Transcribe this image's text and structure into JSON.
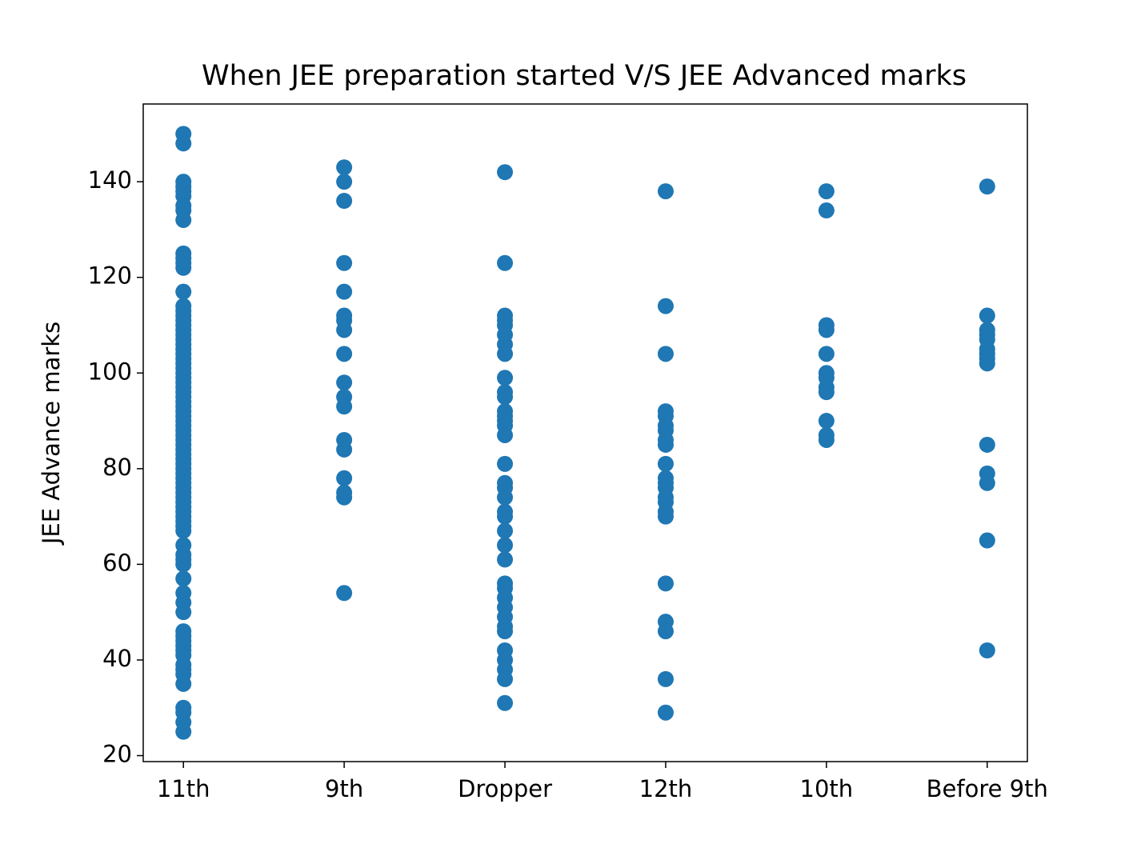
{
  "chart_data": {
    "type": "scatter",
    "title": "When JEE preparation started V/S JEE Advanced marks",
    "y_label": "JEE Advance marks",
    "categories": [
      "11th",
      "9th",
      "Dropper",
      "12th",
      "10th",
      "Before 9th"
    ],
    "values": [
      [
        150,
        148,
        140,
        139,
        138,
        137,
        135,
        134,
        132,
        125,
        124,
        123,
        122,
        117,
        114,
        113,
        112,
        111,
        110,
        109,
        108,
        107,
        106,
        105,
        104,
        103,
        102,
        101,
        100,
        99,
        98,
        97,
        96,
        95,
        94,
        93,
        92,
        91,
        90,
        89,
        88,
        87,
        86,
        85,
        84,
        83,
        82,
        81,
        80,
        79,
        78,
        77,
        76,
        75,
        74,
        73,
        72,
        71,
        70,
        69,
        68,
        67,
        64,
        62,
        61,
        60,
        57,
        54,
        52,
        50,
        46,
        45,
        44,
        43,
        42,
        41,
        39,
        38,
        37,
        35,
        30,
        29,
        27,
        25
      ],
      [
        143,
        140,
        136,
        123,
        117,
        112,
        111,
        109,
        104,
        98,
        95,
        93,
        86,
        84,
        78,
        75,
        74,
        54
      ],
      [
        142,
        123,
        112,
        111,
        110,
        108,
        106,
        104,
        99,
        96,
        95,
        92,
        91,
        90,
        89,
        87,
        81,
        77,
        76,
        74,
        71,
        70,
        67,
        64,
        61,
        56,
        55,
        53,
        51,
        49,
        47,
        46,
        42,
        40,
        38,
        36,
        31
      ],
      [
        138,
        114,
        104,
        92,
        91,
        89,
        88,
        86,
        85,
        81,
        78,
        77,
        76,
        74,
        73,
        71,
        70,
        56,
        48,
        46,
        36,
        29
      ],
      [
        138,
        134,
        110,
        109,
        104,
        100,
        99,
        97,
        96,
        90,
        87,
        86
      ],
      [
        139,
        112,
        109,
        108,
        107,
        105,
        104,
        103,
        102,
        85,
        79,
        77,
        65,
        42
      ]
    ],
    "color": "#1f77b4",
    "ylim": [
      18.75,
      156.25
    ],
    "yticks": [
      20,
      40,
      60,
      80,
      100,
      120,
      140
    ]
  }
}
